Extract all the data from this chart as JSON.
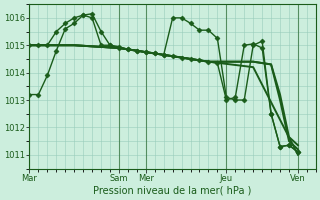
{
  "background_color": "#cceedd",
  "grid_color": "#99ccbb",
  "line_color": "#1a5c1a",
  "ylim": [
    1010.5,
    1016.5
  ],
  "yticks": [
    1011,
    1012,
    1013,
    1014,
    1015,
    1016
  ],
  "xlabel": "Pression niveau de la mer( hPa )",
  "xtick_labels": [
    "Mar",
    "Sam",
    "Mer",
    "Jeu",
    "Ven"
  ],
  "xtick_positions": [
    0,
    10,
    13,
    22,
    30
  ],
  "xlim": [
    0,
    32
  ],
  "lines": [
    {
      "x": [
        0,
        1,
        2,
        3,
        4,
        5,
        6,
        7,
        8,
        9,
        10,
        11,
        12,
        13,
        14,
        15,
        16,
        17,
        18,
        19,
        20,
        21,
        22,
        23,
        24,
        25,
        26,
        27,
        28,
        29,
        30
      ],
      "y": [
        1013.2,
        1013.2,
        1013.9,
        1014.8,
        1015.6,
        1015.8,
        1016.1,
        1016.15,
        1015.5,
        1015.0,
        1014.95,
        1014.85,
        1014.8,
        1014.75,
        1014.7,
        1014.65,
        1016.0,
        1016.0,
        1015.8,
        1015.55,
        1015.55,
        1015.25,
        1013.1,
        1013.0,
        1013.0,
        1015.0,
        1015.15,
        1012.5,
        1011.3,
        1011.35,
        1011.1
      ],
      "marker": "D",
      "ms": 2.5,
      "lw": 1.0
    },
    {
      "x": [
        0,
        1,
        2,
        3,
        4,
        5,
        6,
        7,
        8,
        9,
        10,
        11,
        12,
        13,
        14,
        15,
        16,
        17,
        18,
        19,
        20,
        21,
        22,
        23,
        24,
        25,
        26,
        27,
        28,
        29,
        30
      ],
      "y": [
        1015.0,
        1015.0,
        1015.0,
        1015.5,
        1015.8,
        1016.0,
        1016.1,
        1016.0,
        1015.0,
        1015.0,
        1014.9,
        1014.85,
        1014.8,
        1014.75,
        1014.7,
        1014.65,
        1014.6,
        1014.55,
        1014.5,
        1014.45,
        1014.4,
        1014.35,
        1013.0,
        1013.1,
        1015.0,
        1015.05,
        1014.9,
        1012.5,
        1011.3,
        1011.35,
        1011.1
      ],
      "marker": "D",
      "ms": 2.5,
      "lw": 1.0
    },
    {
      "x": [
        0,
        5,
        10,
        15,
        20,
        25,
        30
      ],
      "y": [
        1015.0,
        1015.0,
        1014.9,
        1014.65,
        1014.4,
        1014.2,
        1011.0
      ],
      "marker": null,
      "ms": 0,
      "lw": 1.4
    },
    {
      "x": [
        0,
        5,
        10,
        15,
        20,
        25,
        27,
        28,
        29,
        30
      ],
      "y": [
        1015.0,
        1015.0,
        1014.9,
        1014.65,
        1014.4,
        1014.4,
        1014.3,
        1013.0,
        1011.5,
        1011.2
      ],
      "marker": null,
      "ms": 0,
      "lw": 1.4
    },
    {
      "x": [
        0,
        5,
        10,
        15,
        20,
        25,
        27,
        28,
        29,
        30
      ],
      "y": [
        1015.0,
        1015.0,
        1014.9,
        1014.65,
        1014.4,
        1014.4,
        1014.3,
        1013.2,
        1011.65,
        1011.35
      ],
      "marker": null,
      "ms": 0,
      "lw": 1.4
    }
  ],
  "vlines": [
    0,
    10,
    13,
    22,
    30
  ]
}
